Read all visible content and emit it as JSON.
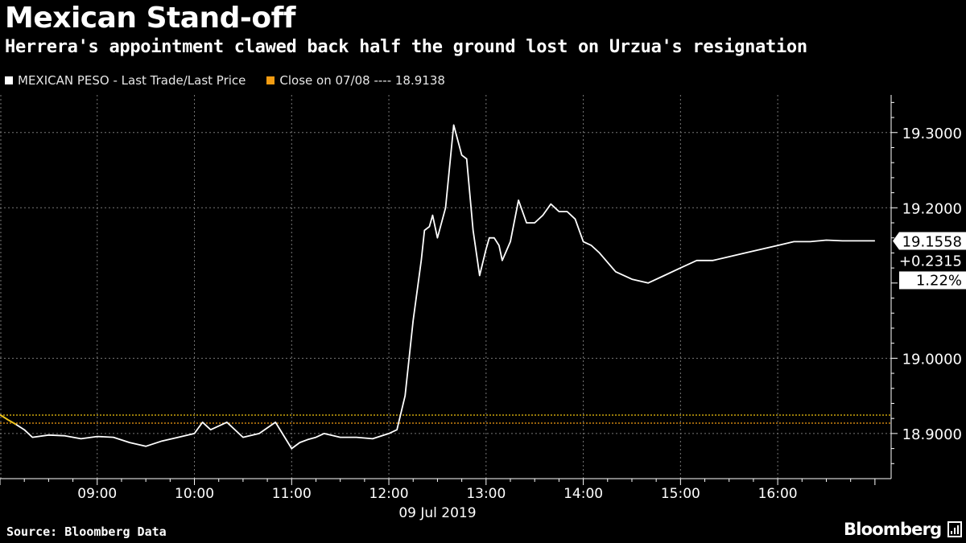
{
  "header": {
    "title": "Mexican Stand-off",
    "subtitle": "Herrera's appointment clawed back half the ground lost on Urzua's resignation"
  },
  "legend": {
    "series_label": "MEXICAN PESO - Last Trade/Last Price",
    "series_color": "#ffffff",
    "close_label": "Close on 07/08 ---- 18.9138",
    "close_color": "#f39c12"
  },
  "footer": {
    "source": "Source: Bloomberg Data",
    "brand": "Bloomberg"
  },
  "chart_data": {
    "type": "line",
    "title": "Mexican Stand-off",
    "subtitle": "Herrera's appointment clawed back half the ground lost on Urzua's resignation",
    "xlabel": "09 Jul 2019",
    "ylabel": "",
    "xlim": [
      "08:00",
      "17:10"
    ],
    "ylim": [
      18.84,
      19.35
    ],
    "grid": true,
    "legend_position": "top-left",
    "x_ticks": [
      "09:00",
      "10:00",
      "11:00",
      "12:00",
      "13:00",
      "14:00",
      "15:00",
      "16:00"
    ],
    "x_date_label": "09 Jul 2019",
    "y_ticks": [
      18.9,
      19.0,
      19.2,
      19.3
    ],
    "y_tick_labels": [
      "18.9000",
      "19.0000",
      "19.2000",
      "19.3000"
    ],
    "reference_lines": [
      {
        "name": "Close on 07/08",
        "value": 18.9138,
        "color": "#f39c12"
      },
      {
        "name": "",
        "value": 18.9245,
        "color": "#f1c40f"
      }
    ],
    "last_value": {
      "price": "19.1558",
      "change": "+0.2315",
      "pct": "1.22%"
    },
    "series": [
      {
        "name": "MEXICAN PESO - Last Trade/Last Price",
        "color": "#ffffff",
        "x": [
          "08:00",
          "08:05",
          "08:10",
          "08:15",
          "08:20",
          "08:30",
          "08:40",
          "08:50",
          "09:00",
          "09:10",
          "09:20",
          "09:30",
          "09:40",
          "09:50",
          "10:00",
          "10:05",
          "10:10",
          "10:20",
          "10:30",
          "10:40",
          "10:50",
          "11:00",
          "11:05",
          "11:10",
          "11:15",
          "11:20",
          "11:30",
          "11:40",
          "11:50",
          "12:00",
          "12:05",
          "12:10",
          "12:15",
          "12:20",
          "12:22",
          "12:25",
          "12:27",
          "12:30",
          "12:35",
          "12:40",
          "12:45",
          "12:48",
          "12:52",
          "12:56",
          "13:00",
          "13:02",
          "13:05",
          "13:08",
          "13:10",
          "13:15",
          "13:20",
          "13:25",
          "13:30",
          "13:35",
          "13:40",
          "13:45",
          "13:50",
          "13:55",
          "14:00",
          "14:05",
          "14:10",
          "14:20",
          "14:30",
          "14:40",
          "14:50",
          "15:00",
          "15:05",
          "15:10",
          "15:15",
          "15:20",
          "15:30",
          "15:40",
          "15:50",
          "16:00",
          "16:10",
          "16:20",
          "16:30",
          "16:40",
          "16:50",
          "17:00"
        ],
        "values": [
          18.925,
          18.918,
          18.912,
          18.905,
          18.895,
          18.898,
          18.897,
          18.893,
          18.896,
          18.895,
          18.888,
          18.883,
          18.89,
          18.895,
          18.9,
          18.915,
          18.905,
          18.915,
          18.895,
          18.9,
          18.915,
          18.88,
          18.888,
          18.892,
          18.895,
          18.9,
          18.895,
          18.895,
          18.893,
          18.9,
          18.905,
          18.95,
          19.05,
          19.13,
          19.17,
          19.175,
          19.19,
          19.16,
          19.2,
          19.31,
          19.27,
          19.265,
          19.17,
          19.11,
          19.145,
          19.16,
          19.16,
          19.15,
          19.13,
          19.155,
          19.21,
          19.18,
          19.18,
          19.19,
          19.205,
          19.195,
          19.195,
          19.185,
          19.155,
          19.15,
          19.14,
          19.115,
          19.105,
          19.1,
          19.11,
          19.12,
          19.125,
          19.13,
          19.13,
          19.13,
          19.135,
          19.14,
          19.145,
          19.15,
          19.155,
          19.155,
          19.157,
          19.156,
          19.156,
          19.156
        ]
      }
    ]
  }
}
